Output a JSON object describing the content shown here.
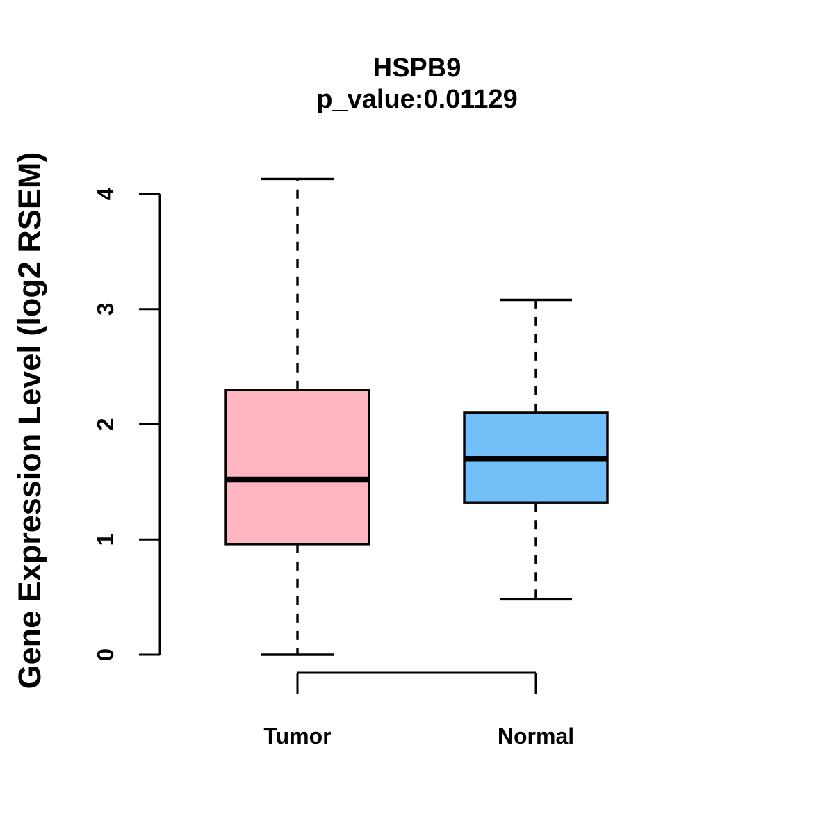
{
  "chart_data": {
    "type": "boxplot",
    "title": "HSPB9",
    "subtitle": "p_value:0.01129",
    "gene": "HSPB9",
    "p_value": 0.01129,
    "ylabel": "Gene Expression Level (log2 RSEM)",
    "xlabel": "",
    "ylim": [
      0,
      4.15
    ],
    "yticks": [
      0,
      1,
      2,
      3,
      4
    ],
    "grid": false,
    "legend_position": "none",
    "categories": [
      "Tumor",
      "Normal"
    ],
    "series": [
      {
        "name": "Tumor",
        "fill_color": "#FFB6C1",
        "whisker_low": 0.0,
        "q1": 0.96,
        "median": 1.52,
        "q3": 2.3,
        "whisker_high": 4.13
      },
      {
        "name": "Normal",
        "fill_color": "#73BFF7",
        "whisker_low": 0.48,
        "q1": 1.32,
        "median": 1.7,
        "q3": 2.1,
        "whisker_high": 3.08
      }
    ],
    "colors": {
      "stroke": "#000000",
      "background": "#FFFFFF",
      "tumor_fill": "#FFB6C1",
      "normal_fill": "#73BFF7"
    }
  }
}
